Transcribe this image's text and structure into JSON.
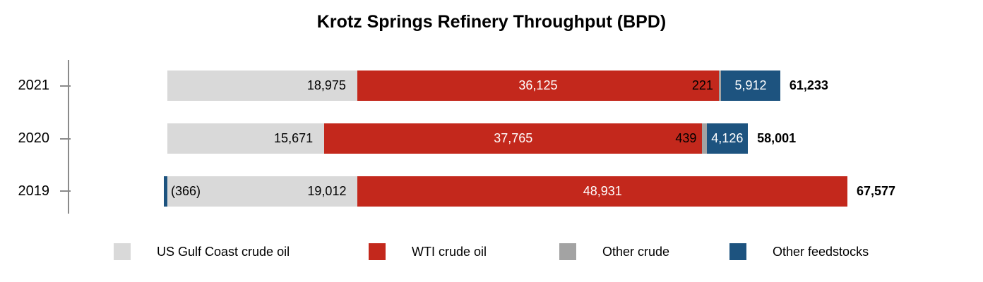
{
  "chart_data": {
    "type": "bar",
    "orientation": "horizontal",
    "title": "Krotz Springs Refinery Throughput (BPD)",
    "categories": [
      "2021",
      "2020",
      "2019"
    ],
    "series": [
      {
        "name": "US Gulf Coast crude oil",
        "color": "#d9d9d9",
        "label_color": "#000000",
        "values": [
          18975,
          15671,
          19012
        ]
      },
      {
        "name": "WTI crude oil",
        "color": "#c3281c",
        "label_color": "#ffffff",
        "values": [
          36125,
          37765,
          48931
        ]
      },
      {
        "name": "Other crude",
        "color": "#a3a3a3",
        "label_color": "#000000",
        "values": [
          221,
          439,
          0
        ]
      },
      {
        "name": "Other feedstocks",
        "color": "#1d537f",
        "label_color": "#ffffff",
        "values": [
          5912,
          4126,
          -366
        ]
      }
    ],
    "totals": [
      61233,
      58001,
      67577
    ],
    "data_labels": {
      "2021": [
        "18,975",
        "36,125",
        "221",
        "5,912"
      ],
      "2020": [
        "15,671",
        "37,765",
        "439",
        "4,126"
      ],
      "2019": [
        "(366)",
        "19,012",
        "48,931"
      ]
    },
    "total_labels": [
      "61,233",
      "58,001",
      "67,577"
    ],
    "axis_color": "#8a8a8a",
    "background": "#ffffff",
    "legend_position": "bottom",
    "grid": false,
    "x_axis_labels_visible": false
  }
}
